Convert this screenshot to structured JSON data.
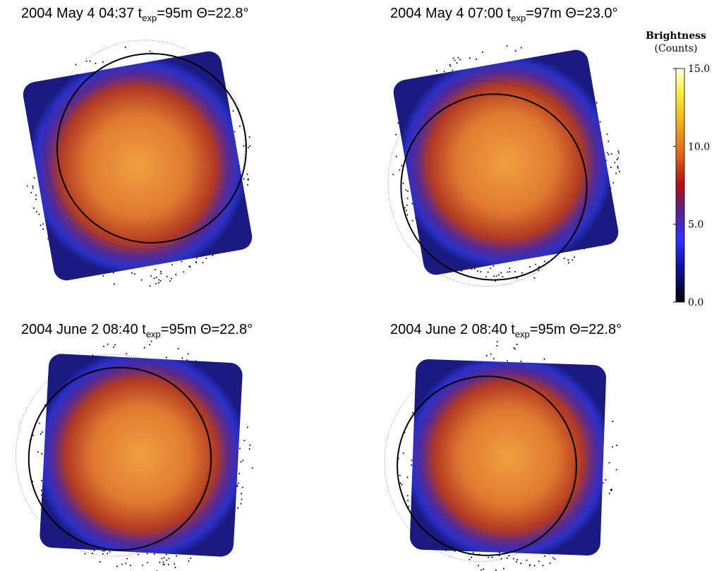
{
  "panels": [
    {
      "title": {
        "pre": "2004 May 4  04:37 t",
        "sub": "exp",
        "post": "=95m Θ=22.8°"
      }
    },
    {
      "title": {
        "pre": "2004 May 4  07:00 t",
        "sub": "exp",
        "post": "=97m Θ=23.0°"
      }
    },
    {
      "title": {
        "pre": "2004 June 2  08:40 t",
        "sub": "exp",
        "post": "=95m Θ=22.8°"
      }
    },
    {
      "title": {
        "pre": "2004 June 2  08:40 t",
        "sub": "exp",
        "post": "=95m Θ=22.8°"
      }
    }
  ],
  "colorbar": {
    "title": [
      "Brightness",
      "(Counts)"
    ],
    "lim": [
      0,
      15
    ],
    "ticks": [
      {
        "value": 0,
        "label": "0.0"
      },
      {
        "value": 5,
        "label": "5.0"
      },
      {
        "value": 10,
        "label": "10.0"
      },
      {
        "value": 15,
        "label": "15.0"
      }
    ]
  }
}
